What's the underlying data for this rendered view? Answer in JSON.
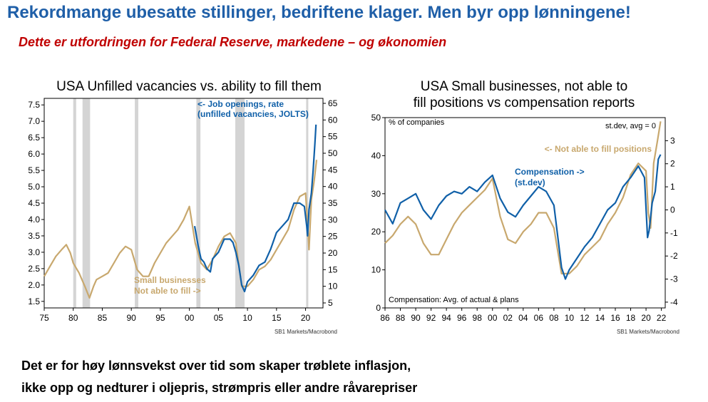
{
  "slide": {
    "title": "Rekordmange ubesatte stillinger,  bedriftene klager. Men byr opp lønningene!",
    "subtitle": "Dette er utfordringen for Federal Reserve, markedene – og økonomien",
    "footer_line1": "Det er for høy lønnsvekst over tid som skaper trøblete inflasjon,",
    "footer_line2": "ikke opp og nedturer i oljepris, strømpris eller andre råvarepriser"
  },
  "colors": {
    "blue": "#1060a8",
    "gold": "#c8a86e",
    "recession": "#d4d4d4",
    "title_blue": "#1f5fa8",
    "subtitle_red": "#c00000"
  },
  "chart_data": [
    {
      "type": "line",
      "title": "USA Unfilled vacancies vs. ability to fill them",
      "source": "SB1 Markets/Macrobond",
      "x_tick_labels": [
        "75",
        "80",
        "85",
        "90",
        "95",
        "00",
        "05",
        "10",
        "15",
        "20"
      ],
      "x_tick_years": [
        1975,
        1980,
        1985,
        1990,
        1995,
        2000,
        2005,
        2010,
        2015,
        2020
      ],
      "xlim": [
        1975,
        2023
      ],
      "ylim_left": [
        1.3,
        7.7
      ],
      "yticks_left": [
        "1.5",
        "2.0",
        "2.5",
        "3.0",
        "3.5",
        "4.0",
        "4.5",
        "5.0",
        "5.5",
        "6.0",
        "6.5",
        "7.0",
        "7.5"
      ],
      "ylim_right": [
        3.5,
        66.5
      ],
      "yticks_right": [
        "5",
        "10",
        "15",
        "20",
        "25",
        "30",
        "35",
        "40",
        "45",
        "50",
        "55",
        "60",
        "65"
      ],
      "recessions": [
        [
          1980.0,
          1980.5
        ],
        [
          1981.6,
          1982.9
        ],
        [
          1990.6,
          1991.2
        ],
        [
          2001.2,
          2001.9
        ],
        [
          2007.9,
          2009.5
        ],
        [
          2020.1,
          2020.4
        ]
      ],
      "annotations": {
        "blue_label": [
          "<- Job openings, rate",
          "(unfilled vacancies, JOLTS)"
        ],
        "gold_label": [
          "Small businesses",
          "Not able to fill ->"
        ]
      },
      "series": [
        {
          "name": "Small businesses Not able to fill",
          "axis": "right",
          "color": "gold",
          "x": [
            1975,
            1976,
            1977,
            1978,
            1978.8,
            1979.5,
            1980,
            1981,
            1982,
            1982.8,
            1983.5,
            1984,
            1985,
            1986,
            1987,
            1988,
            1989,
            1990,
            1991,
            1992,
            1993,
            1994,
            1995,
            1996,
            1997,
            1998,
            1999,
            2000,
            2001,
            2002,
            2003,
            2004,
            2005,
            2006,
            2007,
            2008,
            2009,
            2010,
            2011,
            2012,
            2013,
            2014,
            2015,
            2016,
            2017,
            2018,
            2019,
            2020,
            2020.3,
            2020.6,
            2021,
            2021.5,
            2021.9
          ],
          "y": [
            13,
            16,
            19,
            21,
            22.5,
            20,
            17,
            14,
            10,
            6.5,
            10,
            12,
            13,
            14,
            17,
            20,
            22,
            21,
            15,
            13,
            13,
            17,
            20,
            23,
            25,
            27,
            30,
            34,
            23,
            17,
            15,
            18,
            22,
            25,
            26,
            23,
            10,
            10,
            12,
            15,
            16,
            18,
            21,
            24,
            27,
            33,
            37,
            38,
            30,
            21,
            36,
            42,
            48
          ]
        },
        {
          "name": "Job openings, rate (unfilled vacancies, JOLTS)",
          "axis": "left",
          "color": "blue",
          "x": [
            2000.9,
            2001.5,
            2002,
            2002.5,
            2003,
            2003.6,
            2004,
            2005,
            2006,
            2007,
            2007.5,
            2008,
            2008.5,
            2009,
            2009.5,
            2010,
            2011,
            2012,
            2013,
            2014,
            2015,
            2016,
            2017,
            2018,
            2019,
            2019.8,
            2020.2,
            2020.35,
            2020.6,
            2021,
            2021.3,
            2021.6,
            2021.8
          ],
          "y": [
            3.8,
            3.2,
            2.8,
            2.7,
            2.5,
            2.4,
            2.8,
            3.0,
            3.4,
            3.4,
            3.3,
            3.0,
            2.6,
            2.0,
            1.8,
            2.1,
            2.3,
            2.6,
            2.7,
            3.1,
            3.6,
            3.8,
            4.0,
            4.5,
            4.5,
            4.4,
            3.8,
            3.5,
            4.3,
            4.8,
            5.5,
            6.3,
            6.9
          ]
        }
      ]
    },
    {
      "type": "line",
      "title": "USA Small businesses, not able to fill positions vs compensation reports",
      "title_line1": "USA Small businesses, not able to",
      "title_line2": "fill positions vs compensation reports",
      "source": "SB1 Markets/Macrobond",
      "left_axis_note": "% of companies",
      "right_axis_note": "st.dev, avg = 0",
      "bottom_note": "Compensation: Avg. of actual & plans",
      "x_tick_labels": [
        "86",
        "88",
        "90",
        "92",
        "94",
        "96",
        "98",
        "00",
        "02",
        "04",
        "06",
        "08",
        "10",
        "12",
        "14",
        "16",
        "18",
        "20",
        "22"
      ],
      "x_tick_years": [
        1986,
        1988,
        1990,
        1992,
        1994,
        1996,
        1998,
        2000,
        2002,
        2004,
        2006,
        2008,
        2010,
        2012,
        2014,
        2016,
        2018,
        2020,
        2022
      ],
      "xlim": [
        1986,
        2022.5
      ],
      "ylim_left": [
        0,
        50
      ],
      "yticks_left": [
        "0",
        "10",
        "20",
        "30",
        "40",
        "50"
      ],
      "ylim_right": [
        -4.25,
        4
      ],
      "yticks_right": [
        "-4",
        "-3",
        "-2",
        "-1",
        "0",
        "1",
        "2",
        "3"
      ],
      "annotations": {
        "gold_label": "<- Not able to fill positions",
        "blue_label": [
          "Compensation ->",
          "(st.dev)"
        ]
      },
      "series": [
        {
          "name": "Not able to fill positions",
          "axis": "left",
          "color": "gold",
          "x": [
            1986,
            1987,
            1988,
            1989,
            1990,
            1991,
            1992,
            1993,
            1994,
            1995,
            1996,
            1997,
            1998,
            1999,
            2000,
            2001,
            2002,
            2003,
            2004,
            2005,
            2006,
            2007,
            2008,
            2009,
            2010,
            2011,
            2012,
            2013,
            2014,
            2015,
            2016,
            2017,
            2018,
            2019,
            2020,
            2020.3,
            2020.6,
            2021,
            2021.5,
            2021.9
          ],
          "y": [
            17,
            19,
            22,
            24,
            22,
            17,
            14,
            14,
            18,
            22,
            25,
            27,
            29,
            31,
            34,
            24,
            18,
            17,
            20,
            22,
            25,
            25,
            21,
            9,
            9,
            11,
            14,
            16,
            18,
            22,
            25,
            29,
            35,
            38,
            36,
            25,
            21,
            38,
            44,
            49
          ]
        },
        {
          "name": "Compensation (st.dev)",
          "axis": "right",
          "color": "blue",
          "x": [
            1986,
            1987,
            1988,
            1989,
            1990,
            1991,
            1992,
            1993,
            1994,
            1995,
            1996,
            1997,
            1998,
            1999,
            2000,
            2001,
            2002,
            2003,
            2004,
            2005,
            2006,
            2007,
            2008,
            2009,
            2009.5,
            2010,
            2011,
            2012,
            2013,
            2014,
            2015,
            2016,
            2017,
            2018,
            2019,
            2019.8,
            2020.2,
            2020.4,
            2020.8,
            2021.2,
            2021.6,
            2021.9
          ],
          "y": [
            0,
            -0.6,
            0.3,
            0.5,
            0.7,
            0.0,
            -0.4,
            0.2,
            0.6,
            0.8,
            0.7,
            1.0,
            0.8,
            1.2,
            1.5,
            0.5,
            -0.1,
            -0.3,
            0.2,
            0.6,
            1.0,
            0.8,
            0.2,
            -2.5,
            -3.0,
            -2.6,
            -2.1,
            -1.6,
            -1.2,
            -0.6,
            0.0,
            0.3,
            1.0,
            1.4,
            1.9,
            1.4,
            -1.2,
            -0.9,
            0.3,
            0.8,
            2.2,
            2.4
          ]
        }
      ]
    }
  ]
}
